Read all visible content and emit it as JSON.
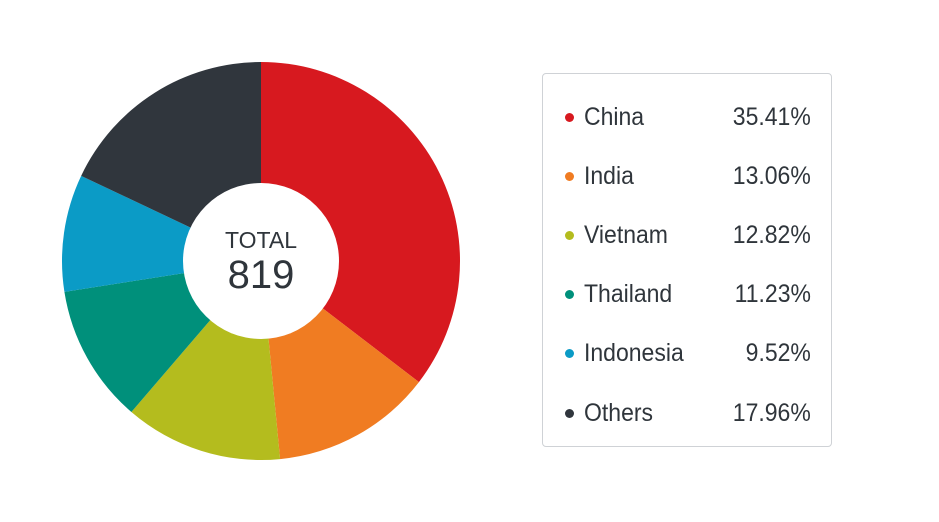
{
  "chart_data": {
    "type": "pie",
    "style": "donut",
    "center": {
      "label": "TOTAL",
      "value": "819"
    },
    "categories": [
      "China",
      "India",
      "Vietnam",
      "Thailand",
      "Indonesia",
      "Others"
    ],
    "values": [
      35.41,
      13.06,
      12.82,
      11.23,
      9.52,
      17.96
    ],
    "value_labels": [
      "35.41%",
      "13.06%",
      "12.82%",
      "11.23%",
      "9.52%",
      "17.96%"
    ],
    "colors": [
      "#d7191f",
      "#f07c22",
      "#b4bc1e",
      "#00907b",
      "#0b9bc6",
      "#30363d"
    ],
    "legend_position": "right"
  }
}
